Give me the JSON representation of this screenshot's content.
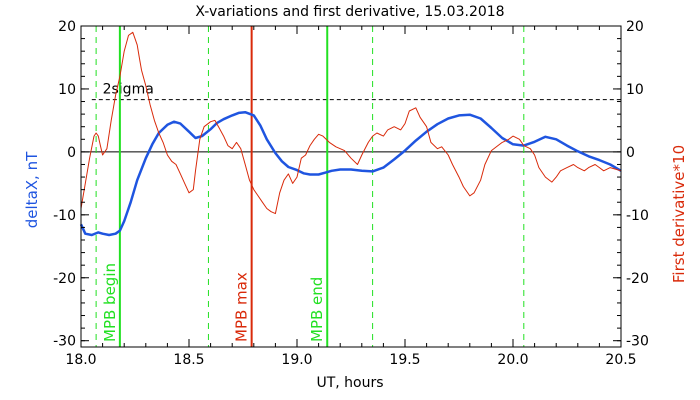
{
  "chart_data": {
    "type": "line",
    "title": "X-variations and first derivative, 15.03.2018",
    "xlabel": "UT, hours",
    "ylabel_left": "deltaX, nT",
    "ylabel_right": "First derivative*10",
    "xlim": [
      18.0,
      20.5
    ],
    "ylim": [
      -31,
      20
    ],
    "xticks": [
      {
        "value": 18.0,
        "label": "18.0"
      },
      {
        "value": 18.5,
        "label": "18.5"
      },
      {
        "value": 19.0,
        "label": "19.0"
      },
      {
        "value": 19.5,
        "label": "19.5"
      },
      {
        "value": 20.0,
        "label": "20.0"
      },
      {
        "value": 20.5,
        "label": "20.5"
      }
    ],
    "yticks": [
      {
        "value": 20,
        "label": "20"
      },
      {
        "value": 10,
        "label": "10"
      },
      {
        "value": 0,
        "label": "0"
      },
      {
        "value": -10,
        "label": "-10"
      },
      {
        "value": -20,
        "label": "-20"
      },
      {
        "value": -30,
        "label": "-30"
      }
    ],
    "colors": {
      "deltaX": "#1f55e0",
      "derivative": "#d92a0a",
      "mpb_boundary": "#22e022",
      "mpb_max": "#d92a0a",
      "axes": "#000000"
    },
    "series": [
      {
        "key": "deltaX",
        "x": [
          18.0,
          18.02,
          18.05,
          18.08,
          18.1,
          18.13,
          18.16,
          18.18,
          18.2,
          18.23,
          18.26,
          18.3,
          18.33,
          18.36,
          18.4,
          18.43,
          18.46,
          18.5,
          18.53,
          18.56,
          18.6,
          18.63,
          18.66,
          18.7,
          18.73,
          18.76,
          18.8,
          18.83,
          18.86,
          18.9,
          18.93,
          18.96,
          19.0,
          19.03,
          19.06,
          19.1,
          19.13,
          19.16,
          19.2,
          19.25,
          19.3,
          19.35,
          19.4,
          19.45,
          19.5,
          19.55,
          19.6,
          19.65,
          19.7,
          19.75,
          19.8,
          19.85,
          19.9,
          19.95,
          20.0,
          20.05,
          20.1,
          20.15,
          20.2,
          20.25,
          20.3,
          20.35,
          20.4,
          20.45,
          20.5
        ],
        "y": [
          -11.5,
          -13.0,
          -13.2,
          -12.8,
          -13.0,
          -13.2,
          -13.0,
          -12.5,
          -11.0,
          -8.0,
          -4.5,
          -1.0,
          1.2,
          3.0,
          4.3,
          4.8,
          4.5,
          3.2,
          2.2,
          2.5,
          3.6,
          4.6,
          5.2,
          5.8,
          6.2,
          6.3,
          5.8,
          4.2,
          2.0,
          -0.2,
          -1.5,
          -2.4,
          -2.9,
          -3.4,
          -3.6,
          -3.6,
          -3.3,
          -3.0,
          -2.8,
          -2.8,
          -3.0,
          -3.1,
          -2.5,
          -1.2,
          0.2,
          1.8,
          3.2,
          4.4,
          5.3,
          5.8,
          5.9,
          5.3,
          3.8,
          2.2,
          1.2,
          1.0,
          1.6,
          2.4,
          2.0,
          1.0,
          0.1,
          -0.7,
          -1.3,
          -2.0,
          -3.0
        ]
      },
      {
        "key": "derivative",
        "x": [
          18.0,
          18.02,
          18.04,
          18.06,
          18.07,
          18.08,
          18.09,
          18.1,
          18.12,
          18.14,
          18.16,
          18.18,
          18.2,
          18.22,
          18.24,
          18.25,
          18.26,
          18.27,
          18.28,
          18.3,
          18.32,
          18.34,
          18.36,
          18.38,
          18.4,
          18.42,
          18.44,
          18.46,
          18.48,
          18.5,
          18.52,
          18.53,
          18.55,
          18.57,
          18.6,
          18.62,
          18.64,
          18.66,
          18.68,
          18.7,
          18.72,
          18.74,
          18.76,
          18.78,
          18.8,
          18.82,
          18.84,
          18.86,
          18.88,
          18.9,
          18.92,
          18.94,
          18.96,
          18.98,
          19.0,
          19.02,
          19.04,
          19.06,
          19.08,
          19.1,
          19.12,
          19.15,
          19.18,
          19.2,
          19.22,
          19.25,
          19.28,
          19.3,
          19.33,
          19.35,
          19.37,
          19.4,
          19.42,
          19.45,
          19.48,
          19.5,
          19.52,
          19.55,
          19.57,
          19.6,
          19.62,
          19.65,
          19.67,
          19.7,
          19.72,
          19.75,
          19.77,
          19.8,
          19.82,
          19.85,
          19.87,
          19.9,
          19.93,
          19.95,
          19.98,
          20.0,
          20.03,
          20.05,
          20.08,
          20.1,
          20.12,
          20.15,
          20.18,
          20.2,
          20.22,
          20.25,
          20.28,
          20.3,
          20.33,
          20.35,
          20.38,
          20.4,
          20.42,
          20.45,
          20.48,
          20.5
        ],
        "y": [
          -9.0,
          -5.0,
          -1.0,
          2.5,
          3.0,
          2.5,
          1.0,
          -0.5,
          0.5,
          5.0,
          9.0,
          12.0,
          16.0,
          18.5,
          19.0,
          18.0,
          17.0,
          15.0,
          13.0,
          10.5,
          7.5,
          5.0,
          3.0,
          1.5,
          -0.5,
          -1.5,
          -2.0,
          -3.5,
          -5.0,
          -6.5,
          -6.0,
          -3.0,
          2.0,
          4.0,
          4.8,
          5.0,
          3.8,
          2.5,
          1.0,
          0.5,
          1.5,
          0.5,
          -2.0,
          -4.5,
          -6.0,
          -7.0,
          -8.0,
          -9.0,
          -9.5,
          -9.8,
          -6.5,
          -4.5,
          -3.5,
          -5.0,
          -4.0,
          -1.0,
          -0.5,
          1.0,
          2.0,
          2.8,
          2.5,
          1.5,
          0.8,
          0.5,
          0.2,
          -1.0,
          -2.0,
          -0.5,
          1.5,
          2.5,
          3.0,
          2.5,
          3.5,
          4.0,
          3.5,
          4.5,
          6.5,
          7.0,
          5.5,
          4.0,
          1.5,
          0.5,
          0.8,
          -0.5,
          -2.0,
          -4.0,
          -5.5,
          -7.0,
          -6.5,
          -4.5,
          -2.0,
          0.2,
          1.0,
          1.5,
          2.0,
          2.5,
          2.0,
          1.0,
          0.5,
          -0.5,
          -2.5,
          -4.0,
          -4.8,
          -4.0,
          -3.0,
          -2.5,
          -2.0,
          -2.5,
          -3.0,
          -2.5,
          -2.0,
          -2.5,
          -3.0,
          -2.5,
          -2.8,
          -3.0
        ]
      }
    ],
    "threshold": {
      "label": "2sigma",
      "value": 8.3
    },
    "dashed_markers": [
      18.07,
      18.59,
      19.35,
      20.05
    ],
    "markers": [
      {
        "key": "mpb_begin",
        "x": 18.18,
        "label": "MPB begin"
      },
      {
        "key": "mpb_max",
        "x": 18.79,
        "label": "MPB max"
      },
      {
        "key": "mpb_end",
        "x": 19.14,
        "label": "MPB end"
      }
    ],
    "grid": false,
    "legend": "none"
  }
}
